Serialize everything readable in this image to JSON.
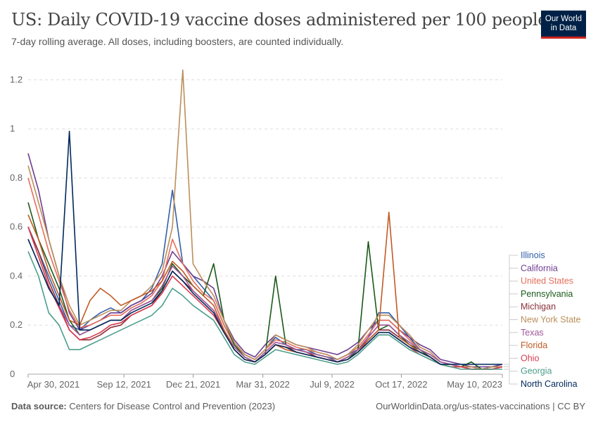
{
  "header": {
    "title": "US: Daily COVID-19 vaccine doses administered per 100 people",
    "subtitle": "7-day rolling average. All doses, including boosters, are counted individually."
  },
  "logo": {
    "line1": "Our World",
    "line2": "in Data",
    "bg": "#002147",
    "accent": "#ce261e"
  },
  "footer": {
    "source_label": "Data source:",
    "source_text": "Centers for Disease Control and Prevention (2023)",
    "url": "OurWorldinData.org/us-states-vaccinations | CC BY"
  },
  "chart_data": {
    "type": "line",
    "title": "US: Daily COVID-19 vaccine doses administered per 100 people",
    "xlabel": "",
    "ylabel": "",
    "ylim": [
      0,
      1.25
    ],
    "yticks": [
      0,
      0.2,
      0.4,
      0.6,
      0.8,
      1,
      1.2
    ],
    "yticklabels": [
      "0",
      "0.2",
      "0.4",
      "0.6",
      "0.8",
      "1",
      "1.2"
    ],
    "xticks": [
      "Apr 30, 2021",
      "Sep 12, 2021",
      "Dec 21, 2021",
      "Mar 31, 2022",
      "Jul 9, 2022",
      "Oct 17, 2022",
      "May 10, 2023"
    ],
    "xtick_positions": [
      0.0,
      0.202,
      0.348,
      0.495,
      0.641,
      0.787,
      1.0
    ],
    "grid": true,
    "legend_position": "right",
    "x_domain": [
      "Apr 2021",
      "May 2023"
    ],
    "series": [
      {
        "name": "Illinois",
        "color": "#3360a9",
        "values": [
          0.6,
          0.5,
          0.4,
          0.3,
          0.2,
          0.18,
          0.22,
          0.25,
          0.27,
          0.25,
          0.28,
          0.3,
          0.35,
          0.45,
          0.75,
          0.45,
          0.4,
          0.35,
          0.3,
          0.2,
          0.12,
          0.08,
          0.06,
          0.1,
          0.15,
          0.12,
          0.1,
          0.1,
          0.08,
          0.07,
          0.06,
          0.08,
          0.1,
          0.15,
          0.25,
          0.25,
          0.2,
          0.15,
          0.1,
          0.08,
          0.05,
          0.04,
          0.03,
          0.03,
          0.02,
          0.03,
          0.04
        ]
      },
      {
        "name": "California",
        "color": "#6d3e91",
        "values": [
          0.9,
          0.75,
          0.55,
          0.4,
          0.25,
          0.18,
          0.2,
          0.22,
          0.25,
          0.25,
          0.28,
          0.3,
          0.33,
          0.4,
          0.5,
          0.45,
          0.4,
          0.38,
          0.35,
          0.22,
          0.14,
          0.09,
          0.07,
          0.12,
          0.16,
          0.14,
          0.12,
          0.11,
          0.1,
          0.09,
          0.08,
          0.1,
          0.13,
          0.18,
          0.22,
          0.22,
          0.18,
          0.15,
          0.12,
          0.1,
          0.06,
          0.05,
          0.04,
          0.03,
          0.03,
          0.03,
          0.04
        ]
      },
      {
        "name": "United States",
        "color": "#e56e5a",
        "values": [
          0.8,
          0.65,
          0.5,
          0.38,
          0.26,
          0.19,
          0.2,
          0.22,
          0.24,
          0.24,
          0.27,
          0.29,
          0.32,
          0.38,
          0.55,
          0.45,
          0.38,
          0.33,
          0.3,
          0.2,
          0.12,
          0.08,
          0.06,
          0.1,
          0.14,
          0.13,
          0.11,
          0.1,
          0.09,
          0.08,
          0.06,
          0.08,
          0.11,
          0.16,
          0.22,
          0.22,
          0.18,
          0.14,
          0.1,
          0.08,
          0.05,
          0.04,
          0.03,
          0.03,
          0.02,
          0.02,
          0.03
        ]
      },
      {
        "name": "Pennsylvania",
        "color": "#1a5a1a",
        "values": [
          0.7,
          0.55,
          0.45,
          0.35,
          0.22,
          0.16,
          0.18,
          0.2,
          0.22,
          0.22,
          0.26,
          0.28,
          0.3,
          0.35,
          0.45,
          0.4,
          0.36,
          0.32,
          0.45,
          0.22,
          0.12,
          0.07,
          0.05,
          0.08,
          0.4,
          0.12,
          0.1,
          0.09,
          0.08,
          0.07,
          0.05,
          0.06,
          0.1,
          0.54,
          0.18,
          0.2,
          0.16,
          0.12,
          0.1,
          0.07,
          0.04,
          0.04,
          0.03,
          0.05,
          0.02,
          0.03,
          0.03
        ]
      },
      {
        "name": "Michigan",
        "color": "#883039",
        "values": [
          0.6,
          0.5,
          0.38,
          0.28,
          0.18,
          0.14,
          0.14,
          0.16,
          0.19,
          0.2,
          0.24,
          0.26,
          0.28,
          0.34,
          0.42,
          0.38,
          0.34,
          0.3,
          0.26,
          0.18,
          0.1,
          0.06,
          0.05,
          0.08,
          0.12,
          0.11,
          0.1,
          0.09,
          0.07,
          0.06,
          0.05,
          0.07,
          0.1,
          0.14,
          0.18,
          0.18,
          0.15,
          0.12,
          0.09,
          0.07,
          0.04,
          0.03,
          0.03,
          0.02,
          0.02,
          0.02,
          0.03
        ]
      },
      {
        "name": "New York State",
        "color": "#bc8e5a",
        "values": [
          0.85,
          0.7,
          0.55,
          0.4,
          0.28,
          0.2,
          0.22,
          0.24,
          0.26,
          0.26,
          0.3,
          0.32,
          0.36,
          0.42,
          0.6,
          1.24,
          0.45,
          0.38,
          0.32,
          0.22,
          0.13,
          0.08,
          0.06,
          0.1,
          0.16,
          0.14,
          0.12,
          0.11,
          0.09,
          0.08,
          0.06,
          0.08,
          0.12,
          0.18,
          0.24,
          0.24,
          0.2,
          0.16,
          0.11,
          0.09,
          0.05,
          0.04,
          0.03,
          0.03,
          0.02,
          0.03,
          0.03
        ]
      },
      {
        "name": "Texas",
        "color": "#a2559c",
        "values": [
          0.55,
          0.45,
          0.35,
          0.28,
          0.2,
          0.16,
          0.18,
          0.2,
          0.22,
          0.22,
          0.26,
          0.28,
          0.3,
          0.36,
          0.44,
          0.4,
          0.34,
          0.3,
          0.26,
          0.18,
          0.11,
          0.07,
          0.05,
          0.09,
          0.13,
          0.12,
          0.1,
          0.09,
          0.08,
          0.07,
          0.05,
          0.07,
          0.1,
          0.15,
          0.2,
          0.2,
          0.16,
          0.13,
          0.1,
          0.08,
          0.05,
          0.04,
          0.03,
          0.02,
          0.02,
          0.02,
          0.03
        ]
      },
      {
        "name": "Florida",
        "color": "#c15b25",
        "values": [
          0.65,
          0.55,
          0.42,
          0.32,
          0.22,
          0.2,
          0.3,
          0.35,
          0.32,
          0.28,
          0.3,
          0.32,
          0.34,
          0.38,
          0.46,
          0.42,
          0.36,
          0.32,
          0.28,
          0.18,
          0.1,
          0.06,
          0.05,
          0.08,
          0.12,
          0.1,
          0.09,
          0.08,
          0.07,
          0.06,
          0.05,
          0.06,
          0.09,
          0.14,
          0.18,
          0.66,
          0.15,
          0.12,
          0.09,
          0.07,
          0.04,
          0.03,
          0.03,
          0.02,
          0.02,
          0.02,
          0.03
        ]
      },
      {
        "name": "Ohio",
        "color": "#d73c50",
        "values": [
          0.6,
          0.48,
          0.36,
          0.27,
          0.18,
          0.14,
          0.15,
          0.17,
          0.2,
          0.21,
          0.24,
          0.26,
          0.28,
          0.33,
          0.4,
          0.36,
          0.32,
          0.28,
          0.24,
          0.17,
          0.1,
          0.06,
          0.05,
          0.08,
          0.12,
          0.11,
          0.09,
          0.08,
          0.07,
          0.06,
          0.05,
          0.06,
          0.09,
          0.13,
          0.17,
          0.17,
          0.14,
          0.11,
          0.08,
          0.06,
          0.04,
          0.03,
          0.03,
          0.02,
          0.02,
          0.02,
          0.03
        ]
      },
      {
        "name": "Georgia",
        "color": "#4c9e8c",
        "values": [
          0.5,
          0.4,
          0.25,
          0.2,
          0.1,
          0.1,
          0.12,
          0.14,
          0.16,
          0.18,
          0.2,
          0.22,
          0.24,
          0.28,
          0.35,
          0.32,
          0.28,
          0.25,
          0.22,
          0.15,
          0.08,
          0.05,
          0.04,
          0.07,
          0.1,
          0.09,
          0.08,
          0.07,
          0.06,
          0.05,
          0.04,
          0.05,
          0.08,
          0.12,
          0.16,
          0.16,
          0.13,
          0.1,
          0.08,
          0.06,
          0.04,
          0.03,
          0.02,
          0.02,
          0.02,
          0.02,
          0.02
        ]
      },
      {
        "name": "North Carolina",
        "color": "#00295b",
        "values": [
          0.55,
          0.45,
          0.35,
          0.28,
          0.99,
          0.18,
          0.18,
          0.2,
          0.22,
          0.22,
          0.25,
          0.27,
          0.29,
          0.34,
          0.42,
          0.38,
          0.33,
          0.29,
          0.25,
          0.17,
          0.1,
          0.06,
          0.05,
          0.08,
          0.12,
          0.11,
          0.09,
          0.08,
          0.07,
          0.06,
          0.05,
          0.06,
          0.09,
          0.13,
          0.17,
          0.17,
          0.14,
          0.11,
          0.09,
          0.07,
          0.04,
          0.04,
          0.04,
          0.04,
          0.04,
          0.04,
          0.04
        ]
      }
    ]
  }
}
